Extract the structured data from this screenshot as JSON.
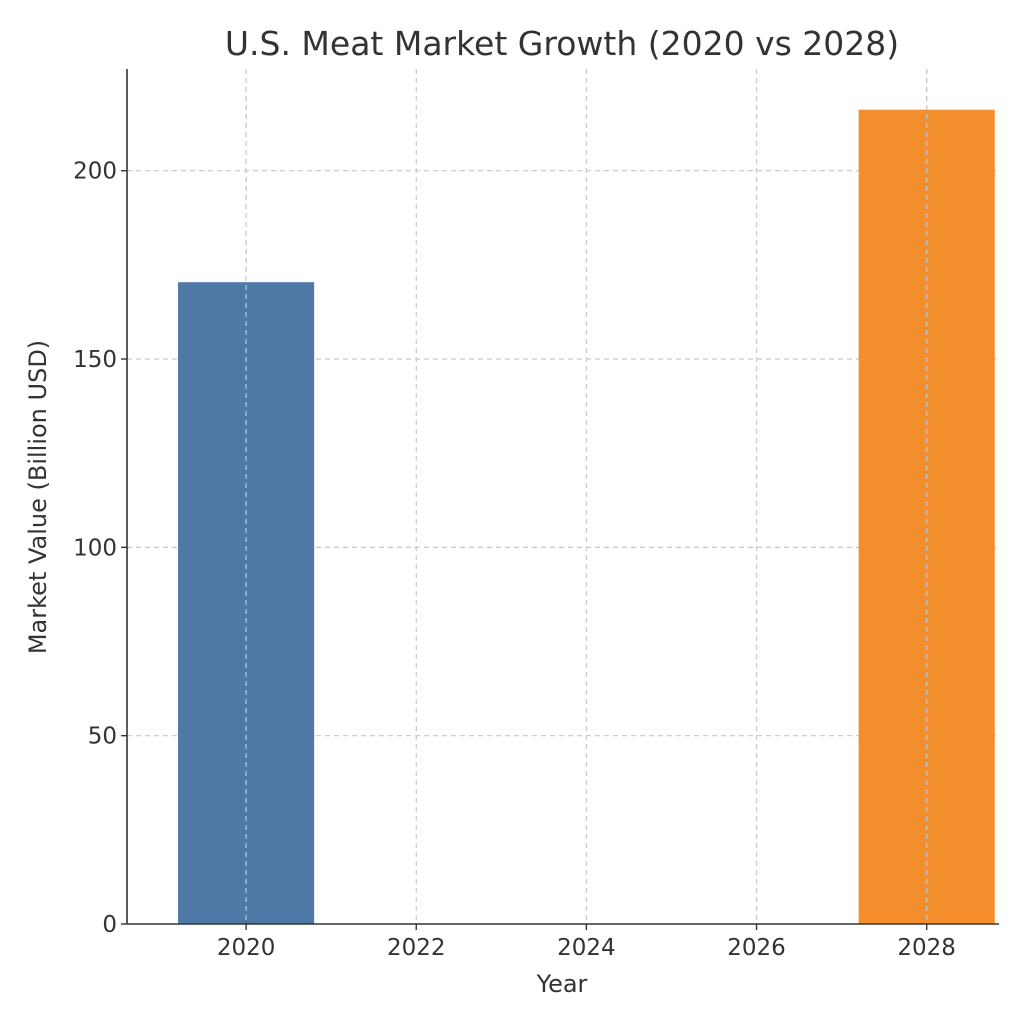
{
  "chart_data": {
    "type": "bar",
    "title": "U.S. Meat Market Growth (2020 vs 2028)",
    "xlabel": "Year",
    "ylabel": "Market Value (Billion USD)",
    "categories": [
      "2020",
      "2028"
    ],
    "x": [
      2020,
      2028
    ],
    "values": [
      170.4,
      216.2
    ],
    "bar_colors": [
      "#4e79a7",
      "#f28e2b"
    ],
    "xlim": [
      2018.6,
      2028.85
    ],
    "ylim": [
      0,
      227
    ],
    "xticks": [
      2020,
      2022,
      2024,
      2026,
      2028
    ],
    "xtick_labels": [
      "2020",
      "2022",
      "2024",
      "2026",
      "2028"
    ],
    "yticks": [
      0,
      50,
      100,
      150,
      200
    ],
    "ytick_labels": [
      "0",
      "50",
      "100",
      "150",
      "200"
    ],
    "grid": true,
    "legend": "none"
  }
}
